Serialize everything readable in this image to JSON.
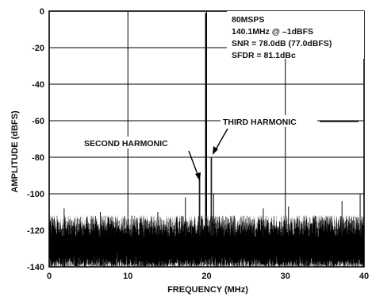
{
  "chart_data": {
    "type": "line",
    "title": "",
    "xlabel": "FREQUENCY (MHz)",
    "ylabel": "AMPLITUDE (dBFS)",
    "xlim": [
      0,
      40
    ],
    "ylim": [
      -140,
      0
    ],
    "x_ticks": [
      0,
      10,
      20,
      30,
      40
    ],
    "y_ticks": [
      0,
      -20,
      -40,
      -60,
      -80,
      -100,
      -120,
      -140
    ],
    "grid": true,
    "info_box": [
      "80MSPS",
      "140.1MHz @ –1dBFS",
      "SNR = 78.0dB (77.0dBFS)",
      "SFDR = 81.1dBc"
    ],
    "annotations": [
      {
        "text": "SECOND HARMONIC",
        "x": 19.1,
        "y": -92
      },
      {
        "text": "THIRD HARMONIC",
        "x": 20.6,
        "y": -80
      }
    ],
    "series": [
      {
        "noise_floor_range": [
          -140,
          -112
        ],
        "peaks": [
          {
            "x": 19.9,
            "y": -1
          },
          {
            "x": 20.6,
            "y": -80
          },
          {
            "x": 19.1,
            "y": -92
          },
          {
            "x": 0.3,
            "y": -113
          },
          {
            "x": 1.9,
            "y": -108
          },
          {
            "x": 6.5,
            "y": -110
          },
          {
            "x": 10.5,
            "y": -112
          },
          {
            "x": 13.8,
            "y": -110
          },
          {
            "x": 17.3,
            "y": -102
          },
          {
            "x": 20.9,
            "y": -100
          },
          {
            "x": 23.5,
            "y": -112
          },
          {
            "x": 27.2,
            "y": -108
          },
          {
            "x": 30.4,
            "y": -107
          },
          {
            "x": 33.8,
            "y": -112
          },
          {
            "x": 37.2,
            "y": -104
          },
          {
            "x": 39.5,
            "y": -100
          }
        ]
      }
    ]
  }
}
